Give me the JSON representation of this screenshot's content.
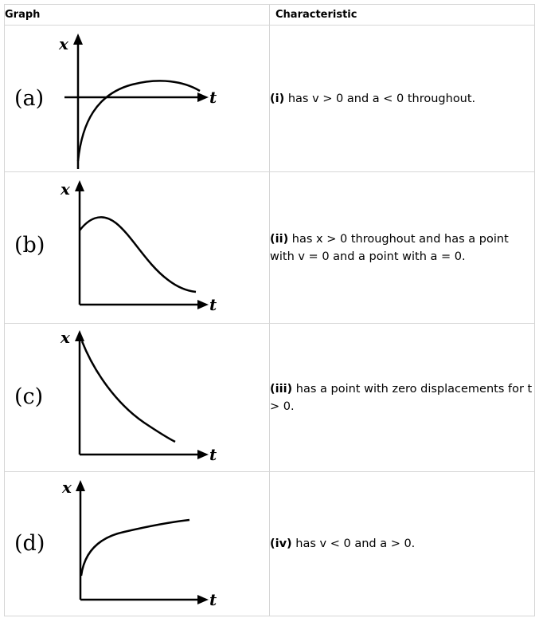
{
  "headers": {
    "graph": "Graph",
    "characteristic": "Characteristic"
  },
  "rows": [
    {
      "label": "(a)",
      "x_axis": "x",
      "t_axis": "t",
      "char_num": "(i)",
      "char_text": " has v > 0 and a < 0 throughout."
    },
    {
      "label": "(b)",
      "x_axis": "x",
      "t_axis": "t",
      "char_num": "(ii)",
      "char_text": " has x > 0 throughout and has a point with v = 0 and a point with a = 0."
    },
    {
      "label": "(c)",
      "x_axis": "x",
      "t_axis": "t",
      "char_num": "(iii)",
      "char_text": " has a point with zero displacements for t > 0."
    },
    {
      "label": "(d)",
      "x_axis": "x",
      "t_axis": "t",
      "char_num": "(iv)",
      "char_text": " has v < 0 and a > 0."
    }
  ]
}
